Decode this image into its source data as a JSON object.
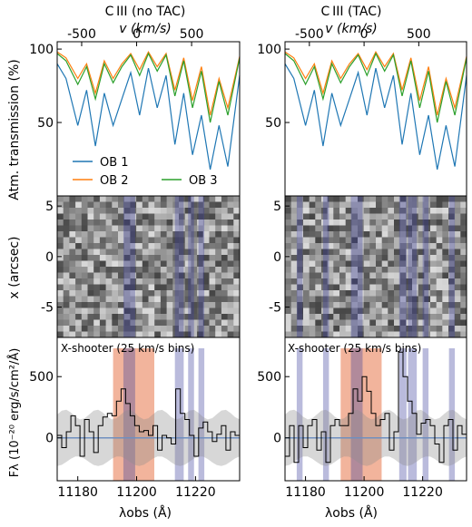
{
  "figure": {
    "left_title": "C III (no TAC)",
    "right_title": "C III (TAC)",
    "velocity_axis_label": "v (km/s)",
    "velocity_ticks": [
      -500,
      0,
      500
    ],
    "wavelength_ticks": [
      11180,
      11200,
      11220
    ],
    "x_label": "λobs (Å)"
  },
  "chart_data": [
    {
      "type": "line",
      "panel": "atmospheric-transmission",
      "ylabel": "Atm. transmission (%)",
      "ylim": [
        0,
        105
      ],
      "yticks": [
        50,
        100
      ],
      "xlim_wavelength": [
        11173,
        11235
      ],
      "legend": [
        "OB 1",
        "OB 2",
        "OB 3"
      ],
      "legend_placement": "lower-center",
      "x_wavelength": [
        11173,
        11176,
        11180,
        11183,
        11186,
        11189,
        11192,
        11195,
        11198,
        11201,
        11204,
        11207,
        11210,
        11213,
        11216,
        11219,
        11222,
        11225,
        11228,
        11231,
        11235
      ],
      "series": [
        {
          "name": "OB 1",
          "color": "#1f77b4",
          "values": [
            90,
            80,
            48,
            72,
            34,
            70,
            48,
            66,
            84,
            55,
            87,
            60,
            82,
            35,
            70,
            28,
            55,
            18,
            48,
            20,
            82
          ]
        },
        {
          "name": "OB 2",
          "color": "#ff7f0e",
          "values": [
            98,
            94,
            80,
            90,
            70,
            92,
            80,
            90,
            97,
            86,
            98,
            88,
            97,
            72,
            94,
            65,
            88,
            55,
            80,
            60,
            95
          ]
        },
        {
          "name": "OB 3",
          "color": "#2ca02c",
          "values": [
            97,
            92,
            76,
            88,
            66,
            90,
            77,
            88,
            96,
            82,
            97,
            85,
            96,
            68,
            92,
            60,
            85,
            50,
            78,
            55,
            94
          ]
        }
      ]
    },
    {
      "type": "heatmap",
      "panel": "2d-spectrum",
      "ylabel": "x (arcsec)",
      "yticks": [
        5,
        0,
        -5
      ],
      "ylim": [
        -8,
        6
      ],
      "colormap": "grayscale",
      "masked_band_color": "#3a3d9a"
    },
    {
      "type": "line",
      "panel": "1d-spectrum",
      "annotation": "X-shooter (25 km/s bins)",
      "ylabel": "Fλ (10⁻²⁰ erg/s/cm²/Å)",
      "yticks": [
        0,
        500
      ],
      "ylim": [
        -350,
        820
      ],
      "emission_band_color": "#e8774b",
      "sky_band_color": "#3a3d9a",
      "left_flux": [
        20,
        -80,
        50,
        180,
        100,
        -150,
        150,
        50,
        -120,
        100,
        170,
        200,
        180,
        300,
        400,
        280,
        180,
        100,
        50,
        60,
        20,
        100,
        -100,
        20,
        0,
        -50,
        400,
        200,
        150,
        20,
        -150,
        80,
        130,
        50,
        -30,
        30,
        100,
        -100,
        50,
        20
      ],
      "right_flux": [
        -150,
        100,
        -200,
        100,
        -80,
        100,
        150,
        -100,
        50,
        -200,
        100,
        150,
        100,
        100,
        200,
        400,
        300,
        500,
        380,
        200,
        100,
        150,
        200,
        -100,
        50,
        700,
        500,
        300,
        200,
        30,
        120,
        150,
        100,
        -50,
        -200,
        100,
        150,
        -100,
        100,
        30
      ]
    }
  ]
}
